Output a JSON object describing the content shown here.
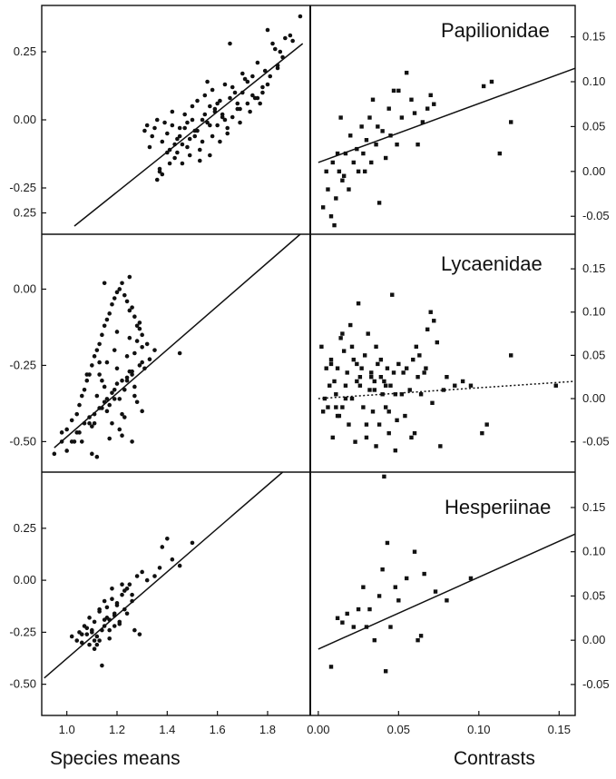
{
  "chart_data": [
    {
      "type": "scatter",
      "title": "",
      "xlabel": "Species means",
      "ylabel": "",
      "xlim": [
        0.9,
        1.97
      ],
      "ylim": [
        -0.42,
        0.42
      ],
      "x_ticks": [
        "1.0",
        "1.2",
        "1.4",
        "1.6",
        "1.8"
      ],
      "y_ticks": [
        "0.25",
        "0.00",
        "-0.25"
      ],
      "series": [
        {
          "x": [
            1.93,
            1.87,
            1.83,
            1.8,
            1.86,
            1.76,
            1.81,
            1.78,
            1.84,
            1.72,
            1.75,
            1.82,
            1.77,
            1.7,
            1.73,
            1.66,
            1.68,
            1.62,
            1.65,
            1.6,
            1.57,
            1.63,
            1.58,
            1.55,
            1.52,
            1.5,
            1.54,
            1.47,
            1.48,
            1.45,
            1.42,
            1.44,
            1.4,
            1.38,
            1.43,
            1.35,
            1.37,
            1.33,
            1.36,
            1.41,
            1.46,
            1.49,
            1.51,
            1.53,
            1.56,
            1.59,
            1.61,
            1.64,
            1.67,
            1.69,
            1.71,
            1.74,
            1.79,
            1.85,
            1.89,
            1.39,
            1.34,
            1.32,
            1.31,
            1.36,
            1.42,
            1.44,
            1.48,
            1.5,
            1.53,
            1.55,
            1.57,
            1.6,
            1.62,
            1.64,
            1.58,
            1.52,
            1.46,
            1.4,
            1.38,
            1.43,
            1.47,
            1.51,
            1.56,
            1.61,
            1.66,
            1.72,
            1.78,
            1.84,
            1.9,
            1.7,
            1.63,
            1.54,
            1.49,
            1.45,
            1.41,
            1.37,
            1.59,
            1.65,
            1.68,
            1.74,
            1.8,
            1.76,
            1.69,
            1.57
          ],
          "y": [
            0.38,
            0.3,
            0.26,
            0.33,
            0.23,
            0.21,
            0.16,
            0.12,
            0.19,
            0.14,
            0.08,
            0.28,
            0.06,
            0.1,
            0.03,
            0.12,
            0.06,
            0.02,
            0.08,
            -0.02,
            0.05,
            0.0,
            -0.06,
            0.02,
            -0.04,
            0.0,
            -0.08,
            -0.03,
            -0.1,
            -0.06,
            -0.02,
            -0.12,
            -0.05,
            -0.08,
            -0.14,
            -0.03,
            -0.18,
            -0.1,
            -0.22,
            -0.16,
            -0.09,
            -0.13,
            -0.06,
            -0.11,
            -0.01,
            0.04,
            0.07,
            -0.03,
            0.1,
            0.04,
            0.15,
            0.09,
            0.18,
            0.25,
            0.31,
            -0.01,
            -0.06,
            -0.02,
            -0.04,
            0.0,
            0.03,
            -0.07,
            -0.01,
            0.05,
            -0.15,
            0.09,
            -0.02,
            0.06,
            0.01,
            -0.05,
            0.11,
            0.07,
            -0.16,
            -0.12,
            -0.2,
            -0.09,
            0.02,
            -0.04,
            0.14,
            -0.08,
            0.01,
            0.06,
            0.1,
            0.2,
            0.29,
            0.17,
            0.13,
            0.0,
            -0.07,
            -0.03,
            -0.11,
            -0.19,
            0.03,
            0.28,
            0.04,
            0.16,
            0.13,
            0.08,
            -0.01,
            -0.13
          ]
        }
      ],
      "fit_line": {
        "x": [
          1.03,
          1.94
        ],
        "y": [
          -0.39,
          0.28
        ],
        "style": "solid"
      }
    },
    {
      "type": "scatter",
      "title": "Papilionidae",
      "xlabel": "Contrasts",
      "ylabel": "",
      "xlim": [
        -0.005,
        0.16
      ],
      "ylim": [
        -0.07,
        0.185
      ],
      "x_ticks": [
        "0.00",
        "0.05",
        "0.10",
        "0.15"
      ],
      "y_ticks": [
        "0.15",
        "0.10",
        "0.05",
        "0.00",
        "-0.05"
      ],
      "series": [
        {
          "x": [
            0.003,
            0.005,
            0.006,
            0.008,
            0.009,
            0.01,
            0.011,
            0.012,
            0.013,
            0.015,
            0.017,
            0.019,
            0.02,
            0.022,
            0.024,
            0.025,
            0.027,
            0.028,
            0.03,
            0.032,
            0.034,
            0.036,
            0.037,
            0.038,
            0.04,
            0.042,
            0.044,
            0.045,
            0.047,
            0.049,
            0.05,
            0.052,
            0.055,
            0.058,
            0.06,
            0.062,
            0.065,
            0.068,
            0.07,
            0.072,
            0.103,
            0.108,
            0.113,
            0.12,
            0.016,
            0.014,
            0.029,
            0.033
          ],
          "y": [
            -0.04,
            0.0,
            -0.02,
            -0.05,
            0.01,
            -0.06,
            -0.03,
            0.02,
            0.0,
            -0.01,
            0.02,
            -0.02,
            0.04,
            0.01,
            0.025,
            0.0,
            0.05,
            0.02,
            0.035,
            0.06,
            0.08,
            0.03,
            0.05,
            -0.035,
            0.045,
            0.015,
            0.07,
            0.04,
            0.09,
            0.03,
            0.09,
            0.06,
            0.11,
            0.08,
            0.065,
            0.03,
            0.055,
            0.07,
            0.085,
            0.075,
            0.095,
            0.1,
            0.02,
            0.055,
            -0.005,
            0.06,
            0.0,
            0.01
          ]
        }
      ],
      "fit_line": {
        "x": [
          0.0,
          0.16
        ],
        "y": [
          0.01,
          0.115
        ],
        "style": "solid"
      }
    },
    {
      "type": "scatter",
      "title": "",
      "xlabel": "Species means",
      "ylabel": "",
      "xlim": [
        0.9,
        1.97
      ],
      "ylim": [
        -0.6,
        0.18
      ],
      "x_ticks": [
        "1.0",
        "1.2",
        "1.4",
        "1.6",
        "1.8"
      ],
      "y_ticks": [
        "0.25",
        "0.00",
        "-0.25",
        "-0.50"
      ],
      "series": [
        {
          "x": [
            0.95,
            0.98,
            1.0,
            1.02,
            1.04,
            1.05,
            1.06,
            1.07,
            1.08,
            1.09,
            1.1,
            1.11,
            1.12,
            1.13,
            1.14,
            1.15,
            1.16,
            1.17,
            1.18,
            1.19,
            1.2,
            1.21,
            1.22,
            1.23,
            1.24,
            1.25,
            1.26,
            1.27,
            1.28,
            1.3,
            1.32,
            1.35,
            1.45,
            1.15,
            1.18,
            1.22,
            1.26,
            1.3,
            1.12,
            1.14,
            1.2,
            1.24,
            1.28,
            1.1,
            1.16,
            1.21,
            1.27,
            1.08,
            1.13,
            1.19,
            1.25,
            1.29,
            1.06,
            1.11,
            1.17,
            1.23,
            1.31,
            1.04,
            1.09,
            1.15,
            1.2,
            1.26,
            1.33,
            1.02,
            1.07,
            1.13,
            1.18,
            1.24,
            1.29,
            1.0,
            1.05,
            1.11,
            1.16,
            1.22,
            1.27,
            0.98,
            1.03,
            1.09,
            1.14,
            1.19,
            1.25,
            1.3,
            1.12,
            1.17,
            1.23,
            1.28,
            1.15,
            1.21,
            1.26,
            1.1,
            1.19,
            1.24,
            1.3,
            1.13,
            1.22,
            1.27,
            1.16,
            1.2,
            1.25,
            1.29
          ],
          "y": [
            -0.54,
            -0.5,
            -0.46,
            -0.43,
            -0.41,
            -0.38,
            -0.35,
            -0.33,
            -0.3,
            -0.28,
            -0.25,
            -0.22,
            -0.2,
            -0.18,
            -0.15,
            -0.12,
            -0.1,
            -0.08,
            -0.05,
            -0.03,
            -0.01,
            0.0,
            0.02,
            -0.02,
            -0.04,
            0.04,
            -0.06,
            -0.09,
            -0.12,
            -0.15,
            -0.18,
            -0.2,
            -0.21,
            0.02,
            -0.44,
            -0.48,
            -0.5,
            -0.4,
            -0.35,
            -0.3,
            -0.26,
            -0.22,
            -0.17,
            -0.45,
            -0.4,
            -0.36,
            -0.32,
            -0.28,
            -0.24,
            -0.2,
            -0.16,
            -0.13,
            -0.5,
            -0.44,
            -0.38,
            -0.33,
            -0.26,
            -0.47,
            -0.42,
            -0.37,
            -0.31,
            -0.27,
            -0.23,
            -0.5,
            -0.44,
            -0.39,
            -0.34,
            -0.29,
            -0.25,
            -0.53,
            -0.47,
            -0.41,
            -0.36,
            -0.3,
            -0.21,
            -0.47,
            -0.5,
            -0.44,
            -0.39,
            -0.33,
            -0.27,
            -0.24,
            -0.55,
            -0.49,
            -0.42,
            -0.37,
            -0.32,
            -0.46,
            -0.28,
            -0.54,
            -0.36,
            -0.3,
            -0.19,
            -0.28,
            -0.41,
            -0.35,
            -0.24,
            -0.14,
            -0.07,
            -0.11
          ]
        }
      ],
      "fit_line": {
        "x": [
          0.95,
          1.93
        ],
        "y": [
          -0.52,
          0.18
        ],
        "style": "solid"
      }
    },
    {
      "type": "scatter",
      "title": "Lycaenidae",
      "xlabel": "Contrasts",
      "ylabel": "",
      "xlim": [
        -0.005,
        0.16
      ],
      "ylim": [
        -0.085,
        0.19
      ],
      "x_ticks": [
        "0.00",
        "0.05",
        "0.10",
        "0.15"
      ],
      "y_ticks": [
        "0.15",
        "0.10",
        "0.05",
        "0.00",
        "-0.05"
      ],
      "series": [
        {
          "x": [
            0.002,
            0.004,
            0.005,
            0.006,
            0.007,
            0.008,
            0.009,
            0.01,
            0.011,
            0.012,
            0.013,
            0.014,
            0.015,
            0.016,
            0.017,
            0.018,
            0.019,
            0.02,
            0.021,
            0.022,
            0.023,
            0.024,
            0.025,
            0.026,
            0.027,
            0.028,
            0.029,
            0.03,
            0.031,
            0.032,
            0.033,
            0.034,
            0.035,
            0.036,
            0.037,
            0.038,
            0.039,
            0.04,
            0.041,
            0.042,
            0.043,
            0.044,
            0.045,
            0.046,
            0.047,
            0.048,
            0.05,
            0.052,
            0.054,
            0.055,
            0.057,
            0.059,
            0.06,
            0.062,
            0.064,
            0.066,
            0.068,
            0.07,
            0.072,
            0.074,
            0.076,
            0.078,
            0.08,
            0.085,
            0.09,
            0.095,
            0.102,
            0.105,
            0.12,
            0.148,
            0.003,
            0.008,
            0.012,
            0.017,
            0.021,
            0.026,
            0.03,
            0.035,
            0.039,
            0.044,
            0.048,
            0.053,
            0.058,
            0.063,
            0.067,
            0.071,
            0.011,
            0.015,
            0.024,
            0.033,
            0.036,
            0.042,
            0.049,
            0.061
          ],
          "y": [
            0.06,
            0.0,
            0.035,
            -0.01,
            0.015,
            0.045,
            -0.045,
            0.02,
            0.005,
            0.035,
            -0.02,
            0.07,
            -0.01,
            0.055,
            0.015,
            0.03,
            -0.03,
            0.085,
            0.0,
            0.045,
            -0.05,
            0.02,
            0.11,
            0.015,
            0.035,
            -0.01,
            0.05,
            -0.045,
            0.075,
            0.01,
            0.03,
            -0.015,
            0.02,
            0.06,
            0.04,
            -0.03,
            0.025,
            0.005,
            0.02,
            -0.01,
            0.035,
            -0.04,
            0.015,
            0.12,
            0.03,
            -0.06,
            0.04,
            0.005,
            -0.02,
            0.035,
            0.01,
            0.045,
            -0.04,
            0.025,
            0.005,
            0.03,
            0.08,
            0.1,
            0.09,
            0.065,
            -0.055,
            0.01,
            0.025,
            0.015,
            0.02,
            0.015,
            -0.04,
            -0.03,
            0.05,
            0.015,
            -0.015,
            0.04,
            -0.02,
            0.0,
            0.06,
            0.025,
            -0.03,
            0.01,
            0.045,
            -0.015,
            0.005,
            0.03,
            -0.045,
            0.05,
            0.035,
            -0.005,
            -0.01,
            0.075,
            0.04,
            0.025,
            -0.055,
            0.015,
            -0.025,
            0.06
          ]
        }
      ],
      "fit_line": {
        "x": [
          0.0,
          0.16
        ],
        "y": [
          0.0,
          0.02
        ],
        "style": "dotted"
      }
    },
    {
      "type": "scatter",
      "title": "",
      "xlabel": "Species means",
      "ylabel": "",
      "xlim": [
        0.9,
        1.97
      ],
      "ylim": [
        -0.65,
        0.52
      ],
      "x_ticks": [
        "1.0",
        "1.2",
        "1.4",
        "1.6",
        "1.8"
      ],
      "y_ticks": [
        "0.25",
        "0.00",
        "-0.25",
        "-0.50"
      ],
      "series": [
        {
          "x": [
            1.02,
            1.04,
            1.05,
            1.06,
            1.07,
            1.08,
            1.09,
            1.1,
            1.11,
            1.12,
            1.13,
            1.14,
            1.15,
            1.16,
            1.17,
            1.18,
            1.19,
            1.2,
            1.21,
            1.22,
            1.23,
            1.24,
            1.25,
            1.26,
            1.28,
            1.3,
            1.32,
            1.35,
            1.37,
            1.38,
            1.4,
            1.42,
            1.45,
            1.5,
            1.09,
            1.11,
            1.13,
            1.15,
            1.17,
            1.19,
            1.21,
            1.14,
            1.16,
            1.18,
            1.2,
            1.12,
            1.1,
            1.22,
            1.24,
            1.26,
            1.08,
            1.13,
            1.17,
            1.19,
            1.23,
            1.15,
            1.27,
            1.29,
            1.06,
            1.11
          ],
          "y": [
            -0.27,
            -0.29,
            -0.25,
            -0.3,
            -0.22,
            -0.26,
            -0.18,
            -0.24,
            -0.2,
            -0.27,
            -0.15,
            -0.41,
            -0.22,
            -0.13,
            -0.24,
            -0.09,
            -0.17,
            -0.12,
            -0.2,
            -0.07,
            -0.14,
            -0.04,
            -0.02,
            -0.1,
            0.02,
            0.04,
            0.0,
            0.02,
            0.06,
            0.16,
            0.2,
            0.1,
            0.07,
            0.18,
            -0.31,
            -0.33,
            -0.29,
            -0.19,
            -0.28,
            -0.16,
            -0.21,
            -0.24,
            -0.18,
            -0.04,
            -0.11,
            -0.31,
            -0.25,
            -0.02,
            -0.16,
            -0.07,
            -0.23,
            -0.14,
            -0.19,
            -0.22,
            -0.05,
            -0.1,
            -0.24,
            -0.26,
            -0.26,
            -0.29
          ]
        }
      ],
      "fit_line": {
        "x": [
          0.91,
          1.86
        ],
        "y": [
          -0.47,
          0.52
        ],
        "style": "solid"
      }
    },
    {
      "type": "scatter",
      "title": "Hesperiinae",
      "xlabel": "Contrasts",
      "ylabel": "",
      "xlim": [
        -0.005,
        0.16
      ],
      "ylim": [
        -0.085,
        0.19
      ],
      "x_ticks": [
        "0.00",
        "0.05",
        "0.10",
        "0.15"
      ],
      "y_ticks": [
        "0.15",
        "0.10",
        "0.05",
        "0.00",
        "-0.05"
      ],
      "series": [
        {
          "x": [
            0.008,
            0.012,
            0.015,
            0.018,
            0.022,
            0.025,
            0.028,
            0.03,
            0.032,
            0.035,
            0.038,
            0.04,
            0.042,
            0.043,
            0.045,
            0.048,
            0.05,
            0.055,
            0.06,
            0.062,
            0.064,
            0.066,
            0.073,
            0.08,
            0.095,
            0.041
          ],
          "y": [
            -0.03,
            0.025,
            0.02,
            0.03,
            0.015,
            0.035,
            0.06,
            0.015,
            0.035,
            0.0,
            0.05,
            0.08,
            -0.035,
            0.11,
            0.015,
            0.06,
            0.045,
            0.07,
            0.1,
            0.0,
            0.005,
            0.075,
            0.055,
            0.045,
            0.07,
            0.185
          ]
        }
      ],
      "fit_line": {
        "x": [
          0.0,
          0.16
        ],
        "y": [
          -0.01,
          0.12
        ],
        "style": "solid"
      }
    }
  ],
  "footer": {
    "left_label": "Species means",
    "right_label": "Contrasts"
  }
}
